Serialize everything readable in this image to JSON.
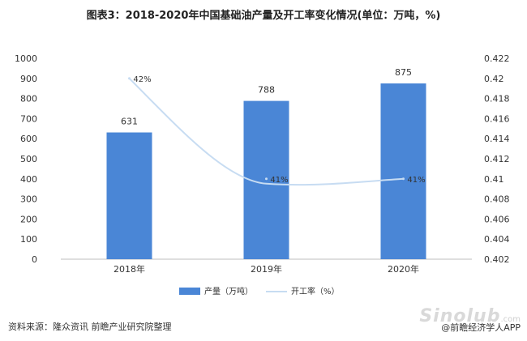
{
  "title": "图表3：2018-2020年中国基础油产量及开工率变化情况(单位：万吨，%)",
  "chart_data": {
    "type": "bar",
    "categories": [
      "2018年",
      "2019年",
      "2020年"
    ],
    "series": [
      {
        "name": "产量（万吨）",
        "type": "bar",
        "axis": "left",
        "values": [
          631,
          788,
          875
        ],
        "labels": [
          "631",
          "788",
          "875"
        ],
        "color": "#4a86d6"
      },
      {
        "name": "开工率（%）",
        "type": "line",
        "axis": "right",
        "values": [
          0.42,
          0.41,
          0.41
        ],
        "labels": [
          "42%",
          "41%",
          "41%"
        ],
        "color": "#c7dcf2"
      }
    ],
    "y_left": {
      "min": 0,
      "max": 1000,
      "ticks": [
        "0",
        "100",
        "200",
        "300",
        "400",
        "500",
        "600",
        "700",
        "800",
        "900",
        "1000"
      ]
    },
    "y_right": {
      "min": 0.402,
      "max": 0.422,
      "ticks": [
        "0.402",
        "0.404",
        "0.406",
        "0.408",
        "0.41",
        "0.412",
        "0.414",
        "0.416",
        "0.418",
        "0.42",
        "0.422"
      ]
    },
    "grid": false,
    "legend": "bottom"
  },
  "source": "资料来源：隆众资讯 前瞻产业研究院整理",
  "watermark": {
    "site": "Sinolub",
    "domain": ".com"
  },
  "brand": "@前瞻经济学人APP"
}
